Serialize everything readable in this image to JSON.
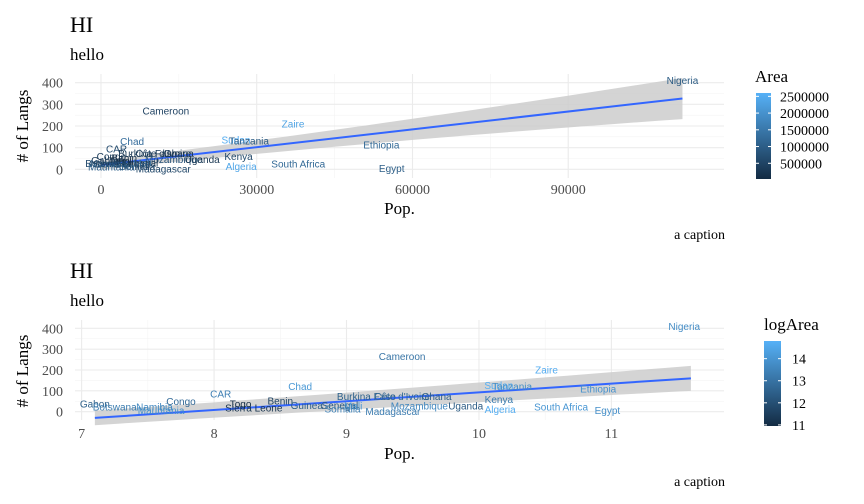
{
  "chart_data": [
    {
      "type": "scatter",
      "title": "HI",
      "subtitle": "hello",
      "caption": "a caption",
      "xlabel": "Pop.",
      "ylabel": "# of Langs",
      "xlim": [
        -5000,
        120000
      ],
      "ylim": [
        -40,
        440
      ],
      "xticks": [
        0,
        30000,
        60000,
        90000
      ],
      "xtick_labels": [
        "0",
        "30000",
        "60000",
        "90000"
      ],
      "yticks": [
        0,
        100,
        200,
        300,
        400
      ],
      "legend": {
        "title": "Area",
        "min": 30000,
        "max": 2600000,
        "ticks": [
          500000,
          1000000,
          1500000,
          2000000,
          2500000
        ],
        "tick_labels": [
          "500000",
          "1000000",
          "1500000",
          "2000000",
          "2500000"
        ],
        "low_color": "#132B43",
        "high_color": "#56B1F7",
        "position": "right"
      },
      "trend": {
        "x": [
          0,
          112000
        ],
        "y": [
          20,
          327
        ],
        "band_halfwidth_start": 22,
        "band_halfwidth_end": 95,
        "color": "#3366FF",
        "band_color": "#cccccc"
      },
      "points": [
        {
          "label": "Nigeria",
          "x": 112000,
          "y": 410,
          "c": 924000
        },
        {
          "label": "Cameroon",
          "x": 12500,
          "y": 270,
          "c": 475000
        },
        {
          "label": "Zaire",
          "x": 37000,
          "y": 210,
          "c": 2345000
        },
        {
          "label": "Sudan",
          "x": 26000,
          "y": 135,
          "c": 2500000
        },
        {
          "label": "Tanzania",
          "x": 28500,
          "y": 130,
          "c": 945000
        },
        {
          "label": "Ethiopia",
          "x": 54000,
          "y": 112,
          "c": 1222000
        },
        {
          "label": "Chad",
          "x": 6000,
          "y": 128,
          "c": 1284000
        },
        {
          "label": "CAR",
          "x": 3000,
          "y": 94,
          "c": 623000
        },
        {
          "label": "Burkina Faso",
          "x": 9000,
          "y": 72,
          "c": 274000
        },
        {
          "label": "Côte d'Ivoire",
          "x": 12000,
          "y": 72,
          "c": 322000
        },
        {
          "label": "Ghana",
          "x": 15000,
          "y": 72,
          "c": 239000
        },
        {
          "label": "Congo",
          "x": 2000,
          "y": 60,
          "c": 342000
        },
        {
          "label": "Kenya",
          "x": 26500,
          "y": 60,
          "c": 580000
        },
        {
          "label": "Mozambique",
          "x": 14000,
          "y": 45,
          "c": 802000
        },
        {
          "label": "Uganda",
          "x": 19500,
          "y": 45,
          "c": 236000
        },
        {
          "label": "Sierra Leone",
          "x": 4000,
          "y": 25,
          "c": 72000
        },
        {
          "label": "Gabon",
          "x": 1000,
          "y": 40,
          "c": 268000
        },
        {
          "label": "Guinea",
          "x": 6000,
          "y": 30,
          "c": 246000
        },
        {
          "label": "Senegal",
          "x": 7500,
          "y": 30,
          "c": 197000
        },
        {
          "label": "Mali",
          "x": 8000,
          "y": 30,
          "c": 1240000
        },
        {
          "label": "Benin",
          "x": 4500,
          "y": 52,
          "c": 113000
        },
        {
          "label": "Togo",
          "x": 3500,
          "y": 38,
          "c": 57000
        },
        {
          "label": "Somalia",
          "x": 7000,
          "y": 12,
          "c": 638000
        },
        {
          "label": "Namibia",
          "x": 1500,
          "y": 28,
          "c": 824000
        },
        {
          "label": "Botswana",
          "x": 1200,
          "y": 26,
          "c": 582000
        },
        {
          "label": "Mauritania",
          "x": 2000,
          "y": 10,
          "c": 1031000
        },
        {
          "label": "Madagascar",
          "x": 12000,
          "y": 2,
          "c": 587000
        },
        {
          "label": "South Africa",
          "x": 38000,
          "y": 25,
          "c": 1221000
        },
        {
          "label": "Algeria",
          "x": 27000,
          "y": 12,
          "c": 2382000
        },
        {
          "label": "Egypt",
          "x": 56000,
          "y": 5,
          "c": 1001000
        }
      ]
    },
    {
      "type": "scatter",
      "title": "HI",
      "subtitle": "hello",
      "caption": "a caption",
      "xlabel": "Pop.",
      "ylabel": "# of Langs",
      "xlim": [
        6.95,
        11.85
      ],
      "ylim": [
        -40,
        440
      ],
      "xticks": [
        7,
        8,
        9,
        10,
        11
      ],
      "xtick_labels": [
        "7",
        "8",
        "9",
        "10",
        "11"
      ],
      "yticks": [
        0,
        100,
        200,
        300,
        400
      ],
      "legend": {
        "title": "logArea",
        "min": 10.95,
        "max": 14.8,
        "ticks": [
          11,
          12,
          13,
          14
        ],
        "tick_labels": [
          "11",
          "12",
          "13",
          "14"
        ],
        "low_color": "#132B43",
        "high_color": "#56B1F7",
        "position": "right"
      },
      "trend": {
        "x": [
          7.1,
          11.6
        ],
        "y": [
          -30,
          160
        ],
        "band_halfwidth_start": 35,
        "band_halfwidth_end": 60,
        "color": "#3366FF",
        "band_color": "#cccccc"
      },
      "points": [
        {
          "label": "Nigeria",
          "x": 11.55,
          "y": 410,
          "c": 13.74
        },
        {
          "label": "Cameroon",
          "x": 9.42,
          "y": 265,
          "c": 13.07
        },
        {
          "label": "Zaire",
          "x": 10.51,
          "y": 200,
          "c": 14.67
        },
        {
          "label": "Sudan",
          "x": 10.15,
          "y": 125,
          "c": 14.73
        },
        {
          "label": "Tanzania",
          "x": 10.25,
          "y": 122,
          "c": 13.76
        },
        {
          "label": "Chad",
          "x": 8.65,
          "y": 122,
          "c": 14.07
        },
        {
          "label": "Ethiopia",
          "x": 10.9,
          "y": 108,
          "c": 13.92
        },
        {
          "label": "CAR",
          "x": 8.05,
          "y": 85,
          "c": 13.34
        },
        {
          "label": "Burkina Faso",
          "x": 9.15,
          "y": 72,
          "c": 12.52
        },
        {
          "label": "Côte d'Ivoire",
          "x": 9.42,
          "y": 72,
          "c": 12.68
        },
        {
          "label": "Ghana",
          "x": 9.68,
          "y": 72,
          "c": 12.38
        },
        {
          "label": "Congo",
          "x": 7.75,
          "y": 50,
          "c": 12.74
        },
        {
          "label": "Benin",
          "x": 8.5,
          "y": 52,
          "c": 11.64
        },
        {
          "label": "Kenya",
          "x": 10.15,
          "y": 58,
          "c": 13.27
        },
        {
          "label": "Gabon",
          "x": 7.1,
          "y": 38,
          "c": 12.5
        },
        {
          "label": "Togo",
          "x": 8.2,
          "y": 36,
          "c": 10.96
        },
        {
          "label": "Guinea",
          "x": 8.7,
          "y": 30,
          "c": 12.41
        },
        {
          "label": "Senegal",
          "x": 8.95,
          "y": 30,
          "c": 12.19
        },
        {
          "label": "Mali",
          "x": 9.05,
          "y": 28,
          "c": 14.03
        },
        {
          "label": "Mozambique",
          "x": 9.55,
          "y": 28,
          "c": 13.6
        },
        {
          "label": "Uganda",
          "x": 9.9,
          "y": 28,
          "c": 12.37
        },
        {
          "label": "Algeria",
          "x": 10.16,
          "y": 10,
          "c": 14.68
        },
        {
          "label": "South Africa",
          "x": 10.62,
          "y": 22,
          "c": 14.02
        },
        {
          "label": "Egypt",
          "x": 10.97,
          "y": 5,
          "c": 13.82
        },
        {
          "label": "Botswana",
          "x": 7.25,
          "y": 22,
          "c": 13.27
        },
        {
          "label": "Namibia",
          "x": 7.55,
          "y": 22,
          "c": 13.62
        },
        {
          "label": "Mauritania",
          "x": 7.6,
          "y": 5,
          "c": 13.85
        },
        {
          "label": "Sierra Leone",
          "x": 8.3,
          "y": 18,
          "c": 11.18
        },
        {
          "label": "Somalia",
          "x": 8.97,
          "y": 12,
          "c": 13.37
        },
        {
          "label": "Madagascar",
          "x": 9.35,
          "y": 2,
          "c": 13.28
        }
      ]
    }
  ]
}
